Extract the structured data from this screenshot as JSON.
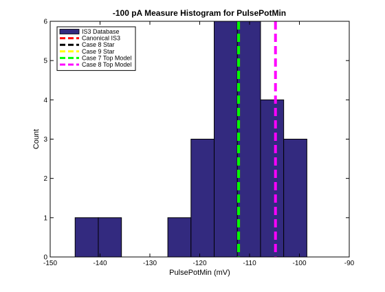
{
  "chart_data": {
    "type": "bar",
    "title": "-100 pA Measure Histogram for PulsePotMin",
    "xlabel": "PulsePotMin (mV)",
    "ylabel": "Count",
    "xlim": [
      -150,
      -90
    ],
    "ylim": [
      0,
      6
    ],
    "xticks": [
      "-150",
      "-140",
      "-130",
      "-120",
      "-110",
      "-100",
      "-90"
    ],
    "yticks": [
      "0",
      "1",
      "2",
      "3",
      "4",
      "5",
      "6"
    ],
    "bins": [
      {
        "x0": -145.0,
        "x1": -140.35,
        "count": 1
      },
      {
        "x0": -140.35,
        "x1": -135.7,
        "count": 1
      },
      {
        "x0": -135.7,
        "x1": -131.05,
        "count": 0
      },
      {
        "x0": -131.05,
        "x1": -126.4,
        "count": 0
      },
      {
        "x0": -126.4,
        "x1": -121.75,
        "count": 1
      },
      {
        "x0": -121.75,
        "x1": -117.1,
        "count": 3
      },
      {
        "x0": -117.1,
        "x1": -112.45,
        "count": 6
      },
      {
        "x0": -112.45,
        "x1": -107.8,
        "count": 6
      },
      {
        "x0": -107.8,
        "x1": -103.15,
        "count": 4
      },
      {
        "x0": -103.15,
        "x1": -98.5,
        "count": 3
      }
    ],
    "bar_color": "#332a7f",
    "vlines": [
      {
        "name": "Canonical IS3",
        "x": -112.2,
        "color": "#ff0000"
      },
      {
        "name": "Case 8 Star",
        "x": -112.2,
        "color": "#000000"
      },
      {
        "name": "Case 9 Star",
        "x": -112.2,
        "color": "#ffff00"
      },
      {
        "name": "Case 7 Top Model",
        "x": -112.2,
        "color": "#00ff00"
      },
      {
        "name": "Case 8 Top Model",
        "x": -104.8,
        "color": "#ff00ff"
      }
    ],
    "legend": {
      "placement": "top-left",
      "entries": [
        {
          "name": "IS3 Database",
          "kind": "patch",
          "color": "#332a7f"
        },
        {
          "name": "Canonical IS3",
          "kind": "dash",
          "color": "#ff0000"
        },
        {
          "name": "Case 8 Star",
          "kind": "dash",
          "color": "#000000"
        },
        {
          "name": "Case 9 Star",
          "kind": "dash",
          "color": "#ffff00"
        },
        {
          "name": "Case 7 Top Model",
          "kind": "dash",
          "color": "#00ff00"
        },
        {
          "name": "Case 8 Top Model",
          "kind": "dash",
          "color": "#ff00ff"
        }
      ]
    },
    "grid": false
  }
}
